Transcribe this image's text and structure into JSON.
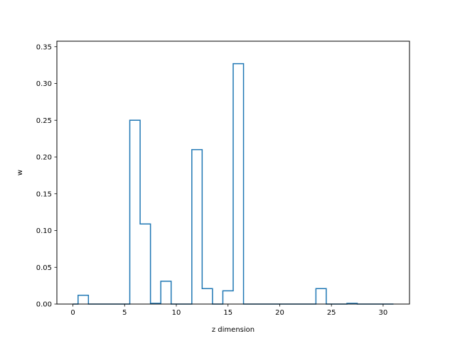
{
  "chart_data": {
    "type": "line",
    "drawstyle": "steps-mid",
    "xlabel": "z dimension",
    "ylabel": "w",
    "xlim": [
      -1.55,
      32.55
    ],
    "ylim": [
      0,
      0.3575
    ],
    "xticks": [
      0,
      5,
      10,
      15,
      20,
      25,
      30
    ],
    "yticks": [
      0.0,
      0.05,
      0.1,
      0.15,
      0.2,
      0.25,
      0.3,
      0.35
    ],
    "ytick_labels": [
      "0.00",
      "0.05",
      "0.10",
      "0.15",
      "0.20",
      "0.25",
      "0.30",
      "0.35"
    ],
    "grid": false,
    "line_color": "#1f77b4",
    "x": [
      0,
      1,
      2,
      3,
      4,
      5,
      6,
      7,
      8,
      9,
      10,
      11,
      12,
      13,
      14,
      15,
      16,
      17,
      18,
      19,
      20,
      21,
      22,
      23,
      24,
      25,
      26,
      27,
      28,
      29,
      30,
      31
    ],
    "values": [
      0,
      0.012,
      0,
      0,
      0,
      0,
      0.25,
      0.109,
      0.001,
      0.031,
      0,
      0,
      0.21,
      0.021,
      0,
      0.018,
      0.327,
      0,
      0,
      0,
      0,
      0,
      0,
      0,
      0.021,
      0,
      0,
      0.001,
      0,
      0,
      0,
      0
    ]
  }
}
